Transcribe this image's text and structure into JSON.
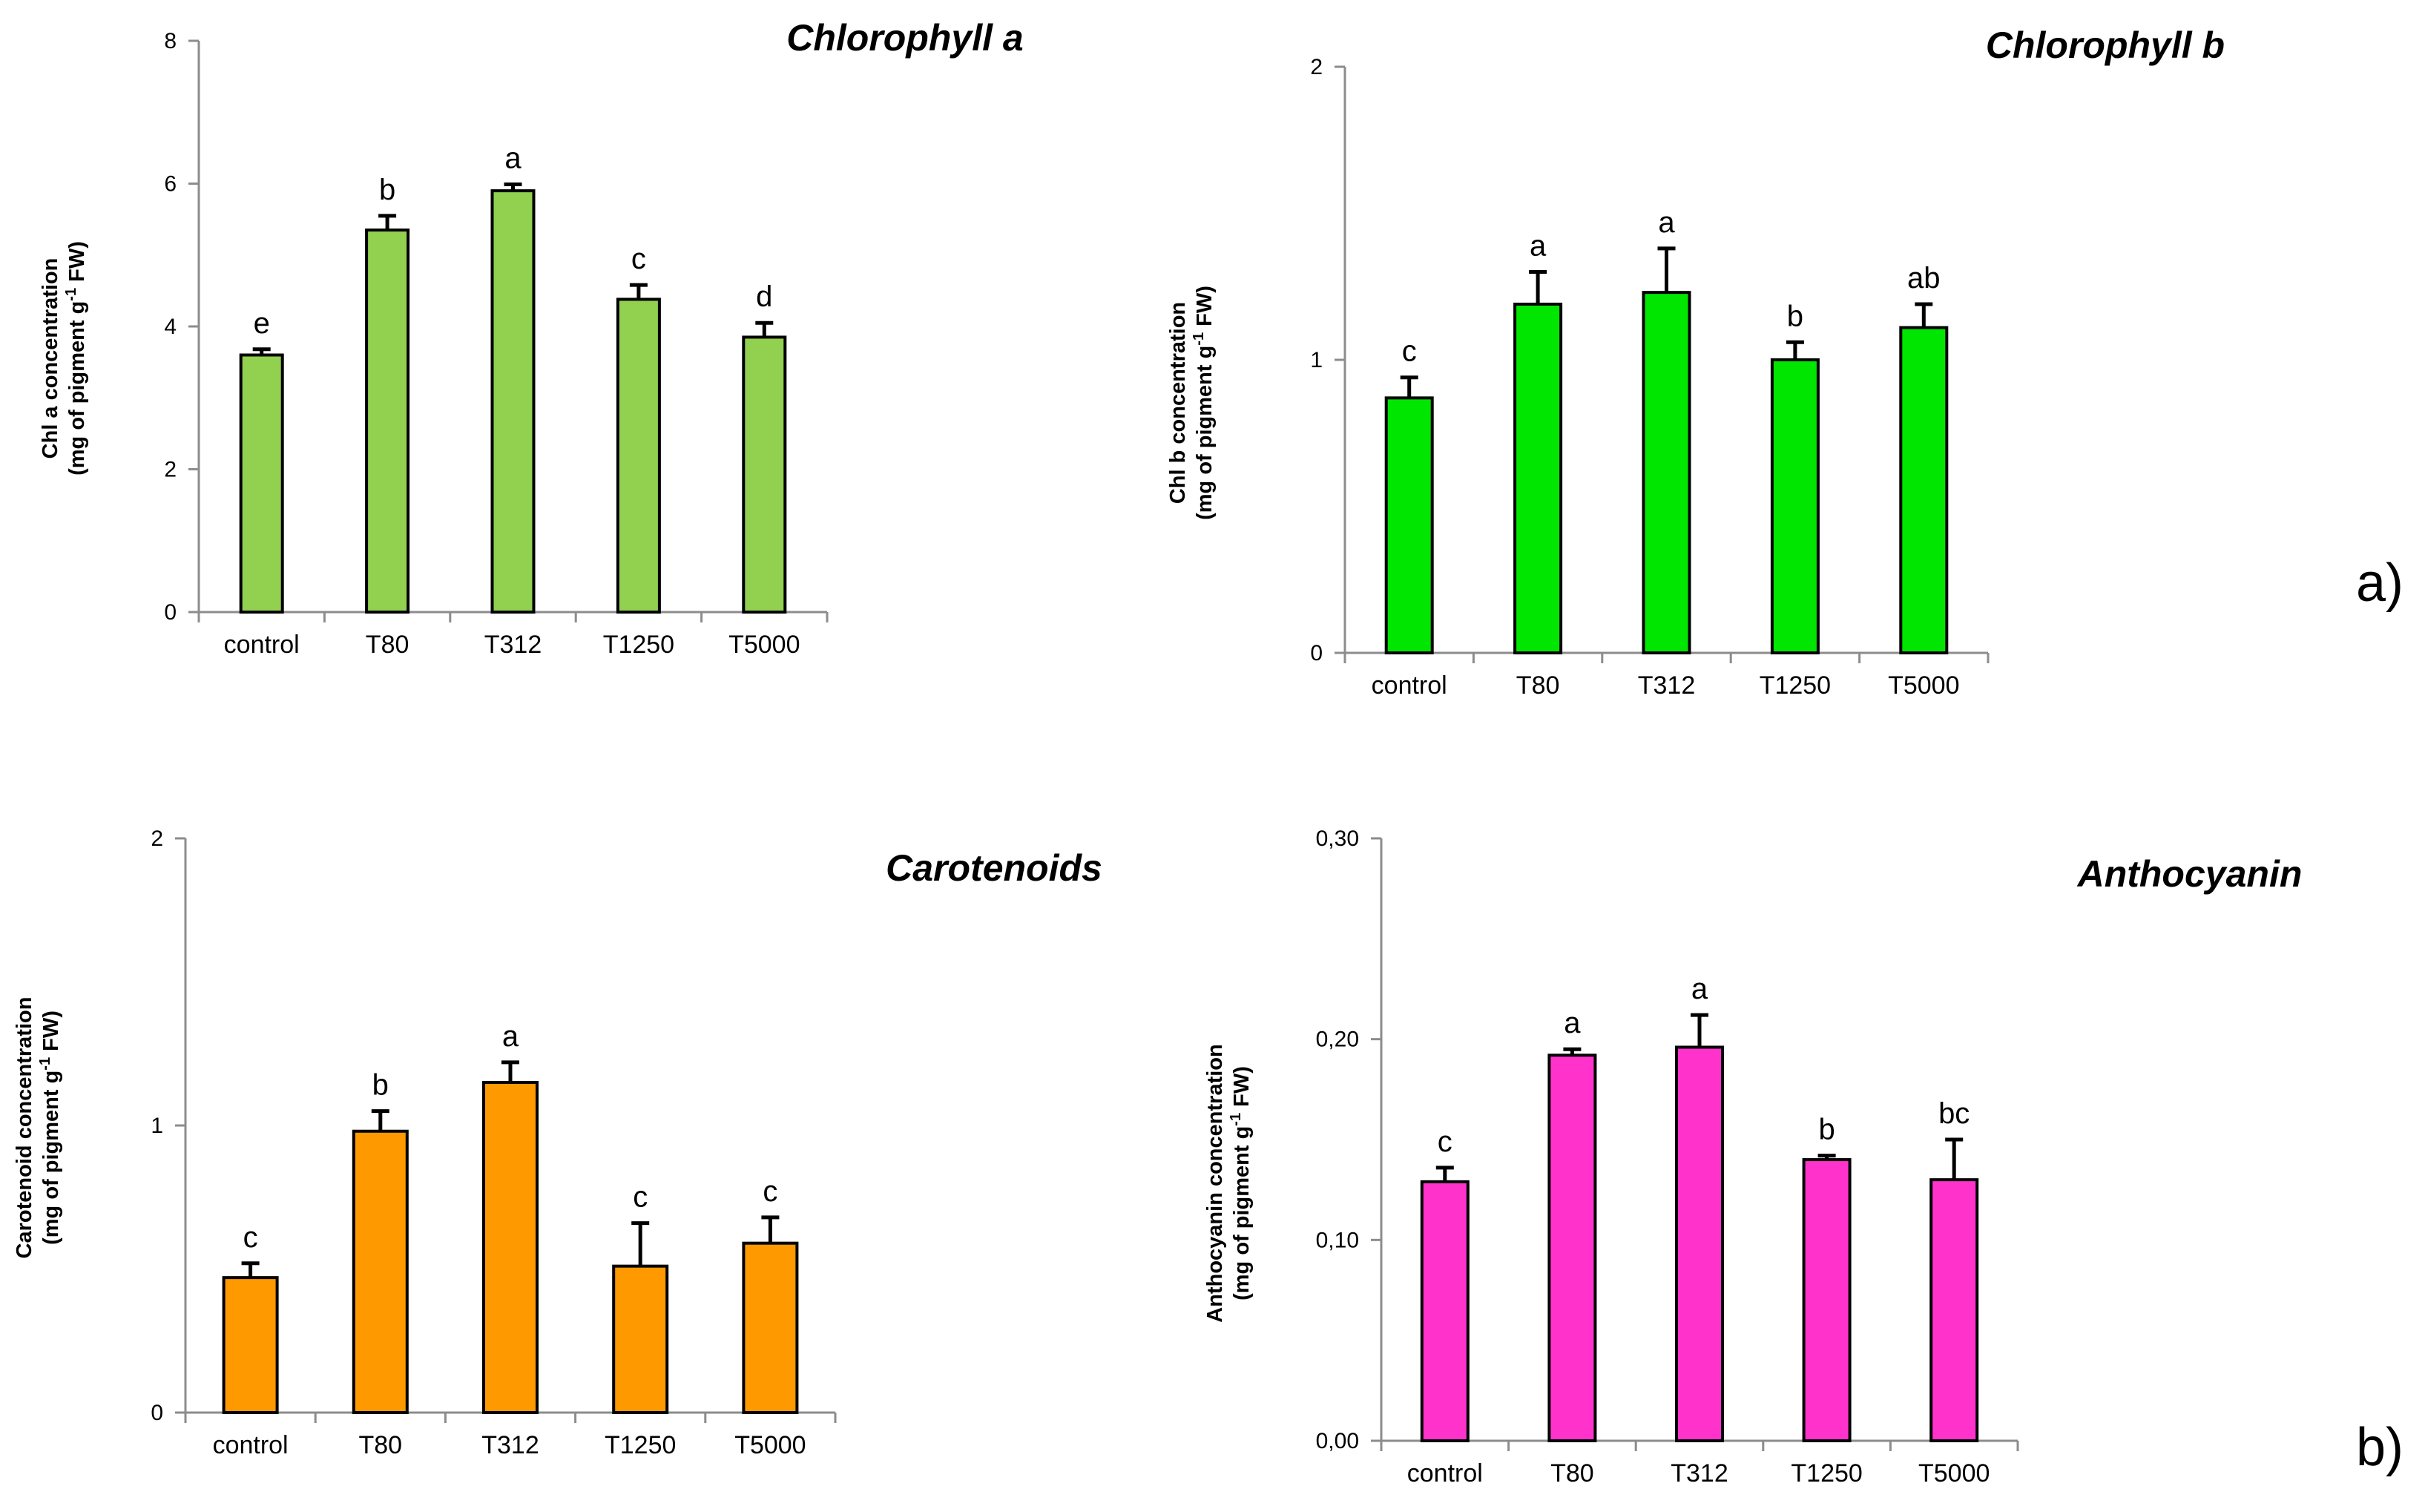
{
  "panel_labels": [
    "a)",
    "b)"
  ],
  "chart_data": [
    {
      "type": "bar",
      "title": "Chlorophyll a",
      "ylabel_line1": "Chl a concentration",
      "ylabel_line2": "(mg of pigment g",
      "ylabel_sup": "-1",
      "ylabel_tail": " FW)",
      "categories": [
        "control",
        "T80",
        "T312",
        "T1250",
        "T5000"
      ],
      "values": [
        3.6,
        5.35,
        5.9,
        4.38,
        3.85
      ],
      "errors": [
        0.08,
        0.2,
        0.09,
        0.2,
        0.2
      ],
      "significance": [
        "e",
        "b",
        "a",
        "c",
        "d"
      ],
      "ylim": [
        0,
        8
      ],
      "yticks": [
        0,
        2,
        4,
        6,
        8
      ],
      "ytick_labels": [
        "0",
        "2",
        "4",
        "6",
        "8"
      ],
      "color": "#92d050"
    },
    {
      "type": "bar",
      "title": "Chlorophyll b",
      "ylabel_line1": "Chl b concentration",
      "ylabel_line2": "(mg of pigment g",
      "ylabel_sup": "-1",
      "ylabel_tail": " FW)",
      "categories": [
        "control",
        "T80",
        "T312",
        "T1250",
        "T5000"
      ],
      "values": [
        0.87,
        1.19,
        1.23,
        1.0,
        1.11
      ],
      "errors": [
        0.07,
        0.11,
        0.15,
        0.06,
        0.08
      ],
      "significance": [
        "c",
        "a",
        "a",
        "b",
        "ab"
      ],
      "ylim": [
        0,
        2
      ],
      "yticks": [
        0,
        1,
        2
      ],
      "ytick_labels": [
        "0",
        "1",
        "2"
      ],
      "color": "#00e600"
    },
    {
      "type": "bar",
      "title": "Carotenoids",
      "ylabel_line1": "Carotenoid concentration",
      "ylabel_line2": "(mg of pigment g",
      "ylabel_sup": "-1",
      "ylabel_tail": " FW)",
      "categories": [
        "control",
        "T80",
        "T312",
        "T1250",
        "T5000"
      ],
      "values": [
        0.47,
        0.98,
        1.15,
        0.51,
        0.59
      ],
      "errors": [
        0.05,
        0.07,
        0.07,
        0.15,
        0.09
      ],
      "significance": [
        "c",
        "b",
        "a",
        "c",
        "c"
      ],
      "ylim": [
        0,
        2
      ],
      "yticks": [
        0,
        1,
        2
      ],
      "ytick_labels": [
        "0",
        "1",
        "2"
      ],
      "color": "#ff9900"
    },
    {
      "type": "bar",
      "title": "Anthocyanin",
      "ylabel_line1": "Anthocyanin concentration",
      "ylabel_line2": "(mg of pigment g",
      "ylabel_sup": "-1",
      "ylabel_tail": " FW)",
      "categories": [
        "control",
        "T80",
        "T312",
        "T1250",
        "T5000"
      ],
      "values": [
        0.129,
        0.192,
        0.196,
        0.14,
        0.13
      ],
      "errors": [
        0.007,
        0.003,
        0.016,
        0.002,
        0.02
      ],
      "significance": [
        "c",
        "a",
        "a",
        "b",
        "bc"
      ],
      "ylim": [
        0,
        0.3
      ],
      "yticks": [
        0,
        0.1,
        0.2,
        0.3
      ],
      "ytick_labels": [
        "0,00",
        "0,10",
        "0,20",
        "0,30"
      ],
      "color": "#ff33cc"
    }
  ]
}
